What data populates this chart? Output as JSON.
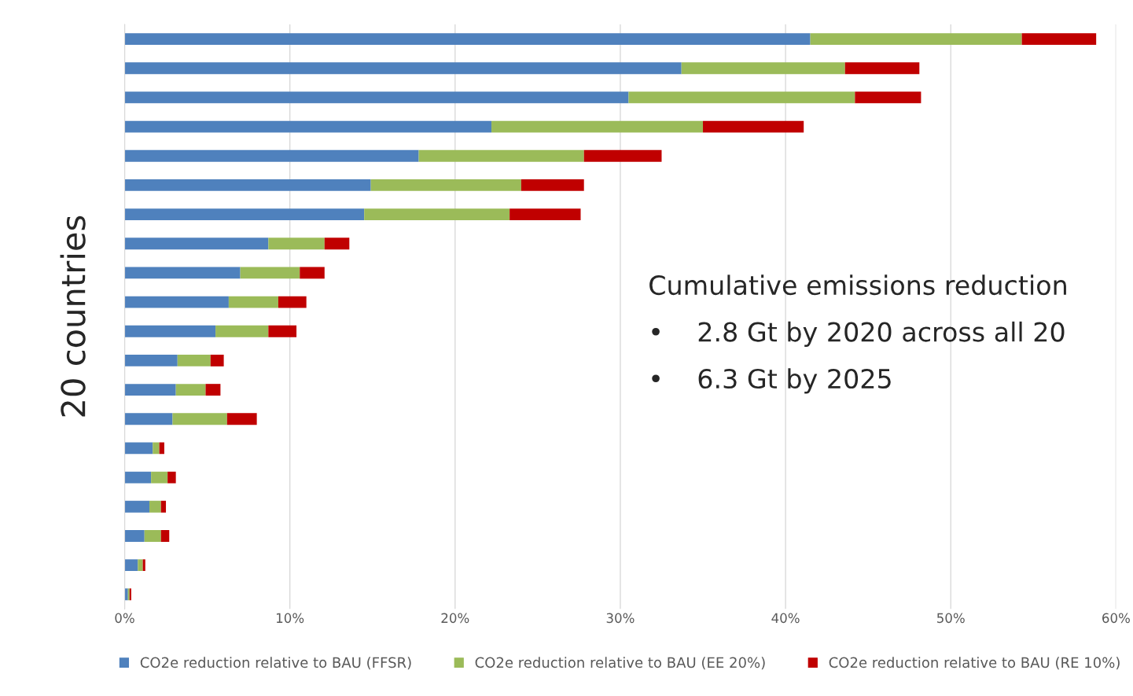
{
  "chart_data": {
    "type": "bar",
    "orientation": "horizontal",
    "stacked": true,
    "ylabel": "20 countries",
    "categories": [
      null,
      null,
      null,
      null,
      null,
      null,
      null,
      null,
      null,
      null,
      null,
      null,
      null,
      null,
      null,
      null,
      null,
      null,
      null,
      null
    ],
    "series": [
      {
        "name": "CO2e reduction relative to BAU (FFSR)",
        "color": "#4f81bd",
        "values": [
          41.5,
          33.7,
          30.5,
          22.2,
          17.8,
          14.9,
          14.5,
          8.7,
          7.0,
          6.3,
          5.5,
          3.2,
          3.1,
          2.9,
          1.7,
          1.6,
          1.5,
          1.2,
          0.8,
          0.2
        ]
      },
      {
        "name": "CO2e reduction relative to BAU (EE 20%)",
        "color": "#9bbb59",
        "values": [
          12.8,
          9.9,
          13.7,
          12.8,
          10.0,
          9.1,
          8.8,
          3.4,
          3.6,
          3.0,
          3.2,
          2.0,
          1.8,
          3.3,
          0.4,
          1.0,
          0.7,
          1.0,
          0.3,
          0.1
        ]
      },
      {
        "name": "CO2e reduction relative to BAU (RE 10%)",
        "color": "#c00000",
        "values": [
          4.5,
          4.5,
          4.0,
          6.1,
          4.7,
          3.8,
          4.3,
          1.5,
          1.5,
          1.7,
          1.7,
          0.8,
          0.9,
          1.8,
          0.3,
          0.5,
          0.3,
          0.5,
          0.15,
          0.1
        ]
      }
    ],
    "xlim": [
      0,
      60
    ],
    "xticks": [
      {
        "value": 0,
        "label": "0%"
      },
      {
        "value": 10,
        "label": "10%"
      },
      {
        "value": 20,
        "label": "20%"
      },
      {
        "value": 30,
        "label": "30%"
      },
      {
        "value": 40,
        "label": "40%"
      },
      {
        "value": 50,
        "label": "50%"
      },
      {
        "value": 60,
        "label": "60%"
      }
    ],
    "tick_labels": "x",
    "grid": "x",
    "legend": "bottom",
    "annotations": [
      "Cumulative emissions reduction",
      "•    2.8 Gt by 2020 across all 20",
      "•    6.3 Gt by 2025"
    ]
  }
}
